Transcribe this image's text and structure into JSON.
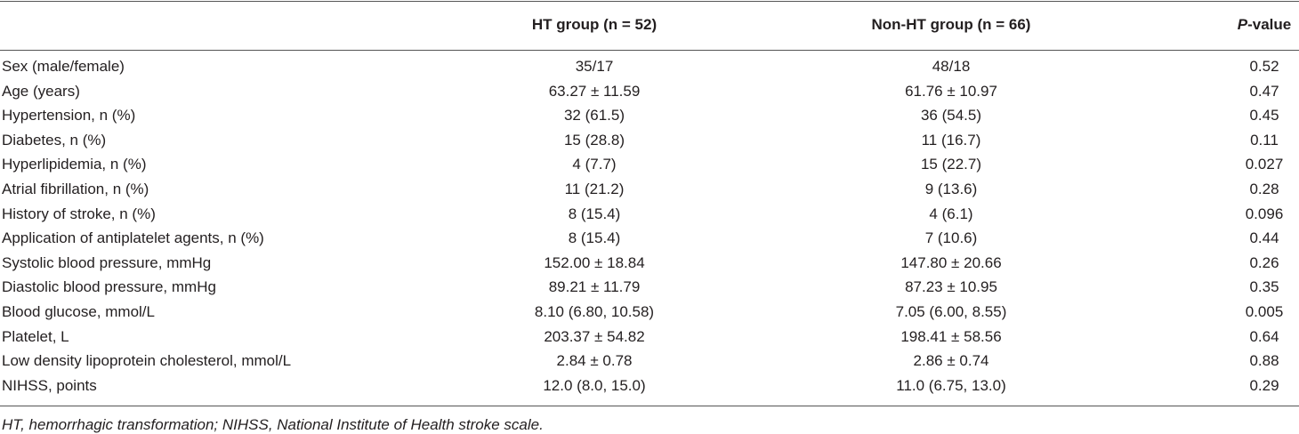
{
  "table": {
    "header": {
      "columns": [
        "HT group (n = 52)",
        "Non-HT group (n = 66)"
      ],
      "p_value": {
        "italic": "P",
        "text": "-value"
      }
    },
    "rows": [
      [
        "Sex (male/female)",
        "35/17",
        "48/18",
        "0.52"
      ],
      [
        "Age (years)",
        "63.27 ± 11.59",
        "61.76 ± 10.97",
        "0.47"
      ],
      [
        "Hypertension, n (%)",
        "32 (61.5)",
        "36 (54.5)",
        "0.45"
      ],
      [
        "Diabetes, n (%)",
        "15 (28.8)",
        "11 (16.7)",
        "0.11"
      ],
      [
        "Hyperlipidemia, n (%)",
        "4 (7.7)",
        "15 (22.7)",
        "0.027"
      ],
      [
        "Atrial fibrillation, n (%)",
        "11 (21.2)",
        "9 (13.6)",
        "0.28"
      ],
      [
        "History of stroke, n (%)",
        "8 (15.4)",
        "4 (6.1)",
        "0.096"
      ],
      [
        "Application of antiplatelet agents, n (%)",
        "8 (15.4)",
        "7 (10.6)",
        "0.44"
      ],
      [
        "Systolic blood pressure, mmHg",
        "152.00 ± 18.84",
        "147.80 ± 20.66",
        "0.26"
      ],
      [
        "Diastolic blood pressure, mmHg",
        "89.21 ± 11.79",
        "87.23 ± 10.95",
        "0.35"
      ],
      [
        "Blood glucose, mmol/L",
        "8.10 (6.80, 10.58)",
        "7.05 (6.00, 8.55)",
        "0.005"
      ],
      [
        "Platelet, L",
        "203.37 ± 54.82",
        "198.41 ± 58.56",
        "0.64"
      ],
      [
        "Low density lipoprotein cholesterol, mmol/L",
        "2.84 ± 0.78",
        "2.86 ± 0.74",
        "0.88"
      ],
      [
        "NIHSS, points",
        "12.0 (8.0, 15.0)",
        "11.0 (6.75, 13.0)",
        "0.29"
      ]
    ],
    "footnote": "HT, hemorrhagic transformation; NIHSS, National Institute of Health stroke scale."
  }
}
